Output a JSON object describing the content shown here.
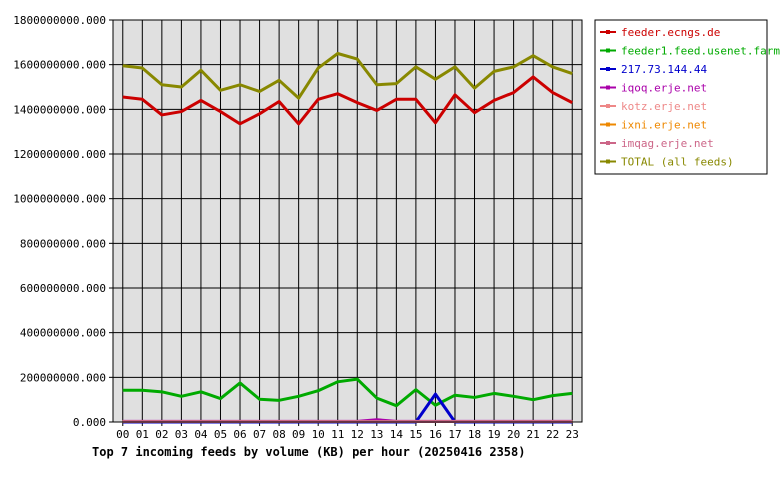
{
  "chart_data": {
    "type": "line",
    "caption": "Top 7 incoming feeds by volume (KB) per hour (20250416 2358)",
    "categories": [
      "00",
      "01",
      "02",
      "03",
      "04",
      "05",
      "06",
      "07",
      "08",
      "09",
      "10",
      "11",
      "12",
      "13",
      "14",
      "15",
      "16",
      "17",
      "18",
      "19",
      "20",
      "21",
      "22",
      "23"
    ],
    "ylim": [
      0,
      1800000000
    ],
    "yticks": [
      0,
      200000000,
      400000000,
      600000000,
      800000000,
      1000000000,
      1200000000,
      1400000000,
      1600000000,
      1800000000
    ],
    "ytick_labels": [
      "0.000",
      "200000000.000",
      "400000000.000",
      "600000000.000",
      "800000000.000",
      "1000000000.000",
      "1200000000.000",
      "1400000000.000",
      "1600000000.000",
      "1800000000.000"
    ],
    "grid": true,
    "plot_background": "#e0e0e0",
    "legend_position": "right",
    "series": [
      {
        "name": "feeder.ecngs.de",
        "color": "#cc0000",
        "values": [
          1455000000,
          1445000000,
          1375000000,
          1390000000,
          1440000000,
          1390000000,
          1335000000,
          1380000000,
          1435000000,
          1335000000,
          1445000000,
          1470000000,
          1430000000,
          1395000000,
          1445000000,
          1445000000,
          1340000000,
          1465000000,
          1385000000,
          1440000000,
          1475000000,
          1545000000,
          1475000000,
          1430000000
        ]
      },
      {
        "name": "feeder1.feed.usenet.farm",
        "color": "#00aa00",
        "values": [
          142000000,
          142000000,
          135000000,
          115000000,
          135000000,
          105000000,
          175000000,
          102000000,
          97000000,
          115000000,
          140000000,
          180000000,
          192000000,
          107000000,
          73000000,
          145000000,
          75000000,
          120000000,
          110000000,
          128000000,
          115000000,
          100000000,
          118000000,
          128000000
        ]
      },
      {
        "name": "217.73.144.44",
        "color": "#0000cc",
        "values": [
          0,
          0,
          0,
          0,
          0,
          0,
          0,
          0,
          0,
          0,
          0,
          0,
          0,
          0,
          0,
          0,
          125000000,
          0,
          0,
          0,
          0,
          0,
          0,
          0
        ]
      },
      {
        "name": "iqoq.erje.net",
        "color": "#aa00aa",
        "values": [
          3000000,
          3000000,
          3000000,
          3000000,
          3000000,
          3000000,
          3000000,
          3000000,
          3000000,
          3000000,
          3000000,
          3000000,
          3000000,
          10000000,
          3000000,
          3000000,
          3000000,
          3000000,
          3000000,
          3000000,
          3000000,
          3000000,
          3000000,
          3000000
        ]
      },
      {
        "name": "kotz.erje.net",
        "color": "#ee8888",
        "values": [
          2000000,
          2000000,
          2000000,
          2000000,
          2000000,
          2000000,
          2000000,
          2000000,
          2000000,
          2000000,
          2000000,
          2000000,
          2000000,
          2000000,
          2000000,
          2000000,
          2000000,
          2000000,
          2000000,
          2000000,
          2000000,
          2000000,
          2000000,
          2000000
        ]
      },
      {
        "name": "ixni.erje.net",
        "color": "#ee8800",
        "values": [
          2000000,
          2000000,
          2000000,
          2000000,
          2000000,
          2000000,
          2000000,
          2000000,
          2000000,
          2000000,
          2000000,
          2000000,
          2000000,
          2000000,
          2000000,
          2000000,
          2000000,
          2000000,
          2000000,
          2000000,
          2000000,
          2000000,
          2000000,
          2000000
        ]
      },
      {
        "name": "imqag.erje.net",
        "color": "#cc6688",
        "values": [
          2000000,
          2000000,
          2000000,
          2000000,
          2000000,
          2000000,
          2000000,
          2000000,
          2000000,
          2000000,
          2000000,
          2000000,
          2000000,
          2000000,
          2000000,
          2000000,
          2000000,
          2000000,
          2000000,
          2000000,
          2000000,
          2000000,
          2000000,
          2000000
        ]
      },
      {
        "name": "TOTAL (all feeds)",
        "color": "#888800",
        "values": [
          1595000000,
          1585000000,
          1510000000,
          1500000000,
          1575000000,
          1485000000,
          1510000000,
          1480000000,
          1530000000,
          1450000000,
          1585000000,
          1650000000,
          1625000000,
          1510000000,
          1515000000,
          1590000000,
          1535000000,
          1590000000,
          1495000000,
          1570000000,
          1590000000,
          1640000000,
          1590000000,
          1560000000
        ]
      }
    ]
  }
}
